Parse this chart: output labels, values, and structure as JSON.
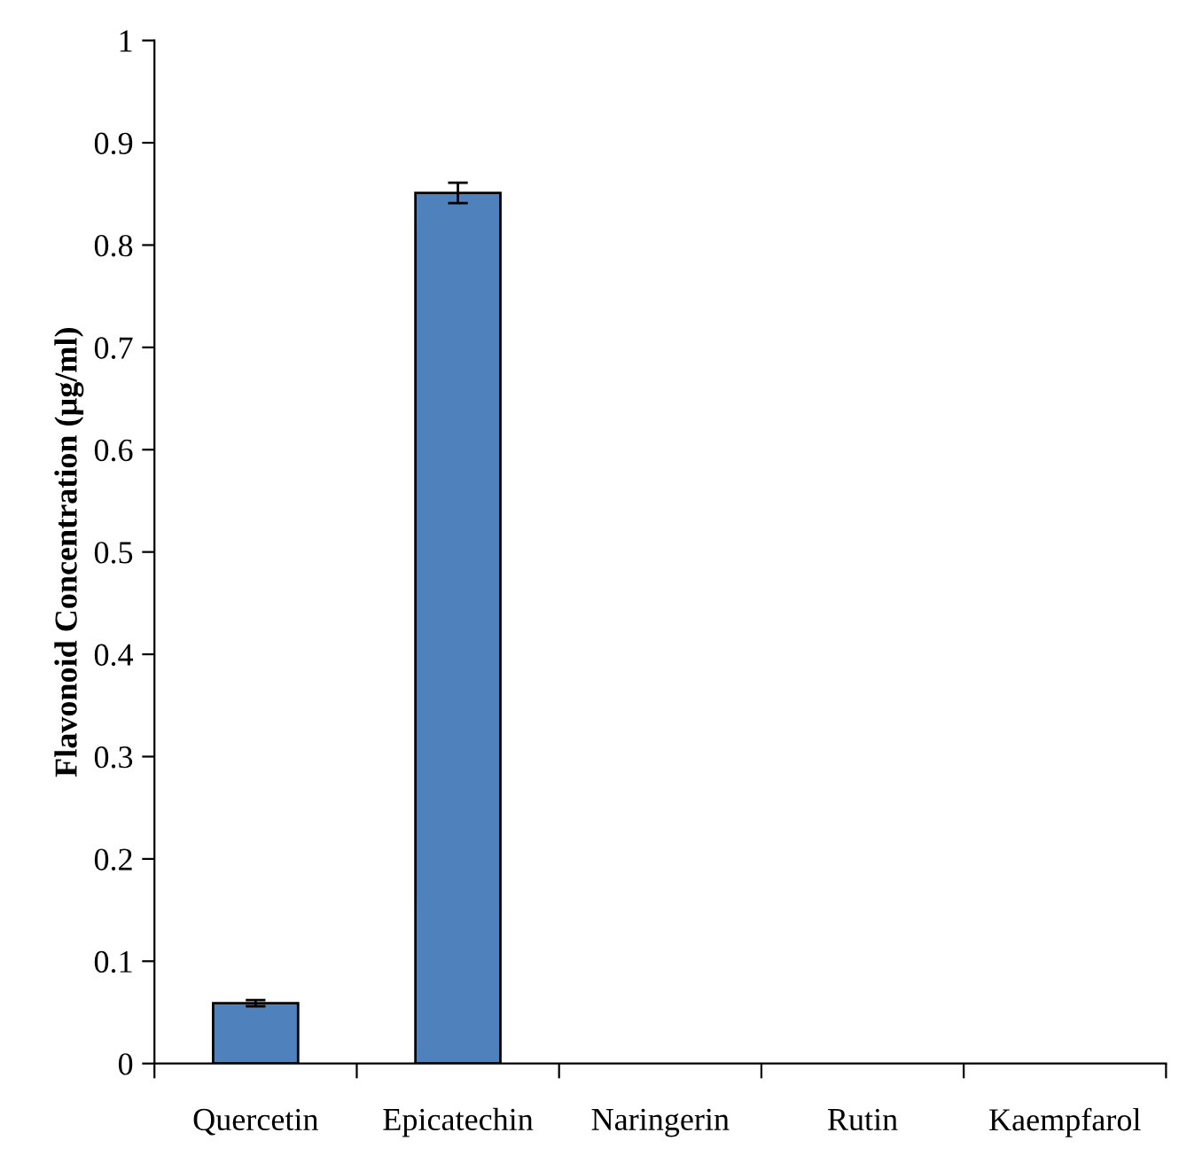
{
  "chart_data": {
    "type": "bar",
    "ylabel": "Flavonoid Concentration (µg/ml)",
    "categories": [
      "Quercetin",
      "Epicatechin",
      "Naringerin",
      "Rutin",
      "Kaempfarol"
    ],
    "values": [
      0.059,
      0.851,
      0,
      0,
      0
    ],
    "errors": [
      0.003,
      0.01,
      null,
      null,
      null
    ],
    "color": "#4f81bd",
    "ylim": [
      0,
      1
    ],
    "yticks": [
      0,
      0.1,
      0.2,
      0.3,
      0.4,
      0.5,
      0.6,
      0.7,
      0.8,
      0.9,
      1
    ],
    "grid": false,
    "legend": false
  }
}
